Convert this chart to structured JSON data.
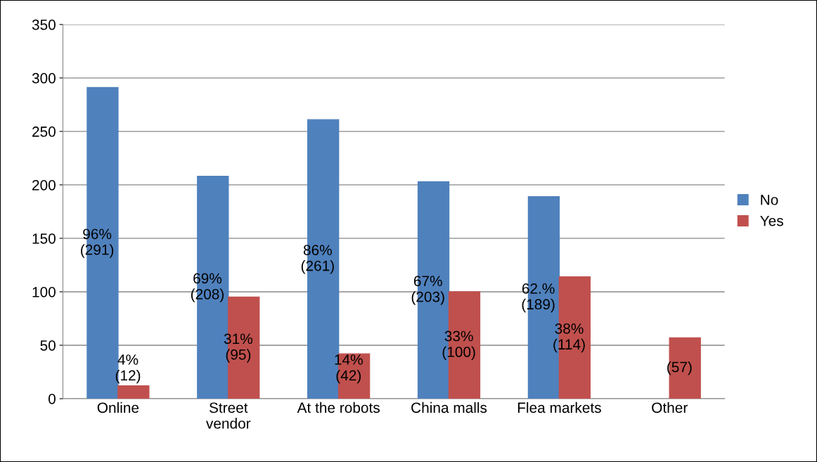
{
  "chart_data": {
    "type": "bar",
    "categories": [
      "Online",
      "Street\nvendor",
      "At the robots",
      "China malls",
      "Flea markets",
      "Other"
    ],
    "series": [
      {
        "name": "No",
        "color": "#4f81bd",
        "values": [
          291,
          208,
          261,
          203,
          189,
          null
        ],
        "value_labels": [
          "96%\n(291)",
          "69%\n(208)",
          "86%\n(261)",
          "67%\n(203)",
          "62.%\n(189)",
          null
        ]
      },
      {
        "name": "Yes",
        "color": "#c0504d",
        "values": [
          12,
          95,
          42,
          100,
          114,
          57
        ],
        "value_labels": [
          "4%\n(12)",
          "31%\n(95)",
          "14%\n(42)",
          "33%\n(100)",
          "38%\n(114)",
          "(57)"
        ]
      }
    ],
    "ylim": [
      0,
      350
    ],
    "yticks": [
      0,
      50,
      100,
      150,
      200,
      250,
      300,
      350
    ],
    "grid": "y",
    "legend": "right"
  }
}
